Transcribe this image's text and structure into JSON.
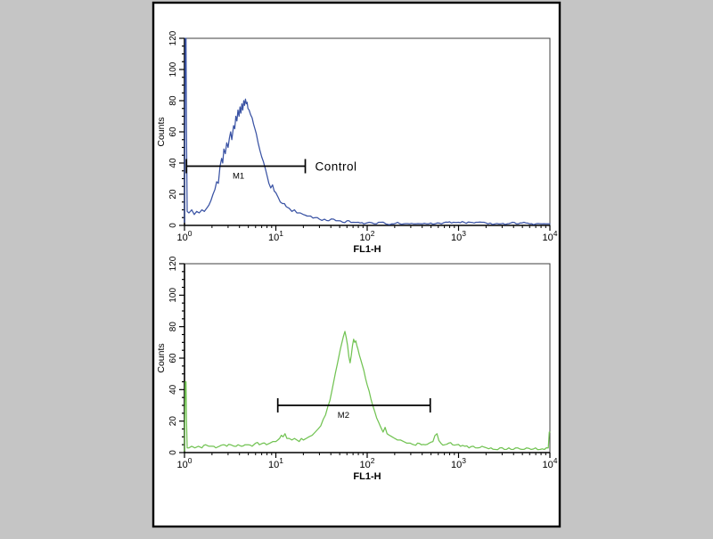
{
  "figure": {
    "outer_background": "#c5c5c5",
    "panel_background": "#ffffff",
    "figure_border_color": "#000000",
    "axis_color": "#000000",
    "frame_color": "#3f3f3f",
    "marker_color": "#000000"
  },
  "chart_data": {
    "type": "line",
    "subtype": "flow-cytometry-histogram",
    "panels": [
      {
        "name": "control-histogram",
        "line_color": "#3a53a4",
        "xlabel": "FL1-H",
        "ylabel": "Counts",
        "x_scale": "log",
        "x_tick_exponents": [
          0,
          1,
          2,
          3,
          4
        ],
        "x_tick_base": "10",
        "ylim": [
          0,
          120
        ],
        "y_major_ticks": [
          0,
          20,
          40,
          60,
          80,
          100,
          120
        ],
        "y_minor_step": 5,
        "marker": {
          "label": "M1",
          "x_from": 1.05,
          "x_to": 21,
          "y_counts": 38,
          "annotation": "Control"
        },
        "points": [
          [
            1,
            2
          ],
          [
            1.02,
            120
          ],
          [
            1.04,
            120
          ],
          [
            1.05,
            63
          ],
          [
            1.07,
            9
          ],
          [
            1.12,
            8
          ],
          [
            1.2,
            10
          ],
          [
            1.28,
            7
          ],
          [
            1.36,
            9
          ],
          [
            1.45,
            8
          ],
          [
            1.55,
            10
          ],
          [
            1.65,
            9
          ],
          [
            1.75,
            11
          ],
          [
            1.85,
            13
          ],
          [
            1.95,
            16
          ],
          [
            2.05,
            20
          ],
          [
            2.15,
            23
          ],
          [
            2.25,
            28
          ],
          [
            2.35,
            27
          ],
          [
            2.45,
            38
          ],
          [
            2.55,
            43
          ],
          [
            2.62,
            40
          ],
          [
            2.7,
            49
          ],
          [
            2.8,
            46
          ],
          [
            2.9,
            53
          ],
          [
            3,
            50
          ],
          [
            3.1,
            56
          ],
          [
            3.2,
            60
          ],
          [
            3.3,
            55
          ],
          [
            3.45,
            64
          ],
          [
            3.55,
            62
          ],
          [
            3.65,
            70
          ],
          [
            3.75,
            67
          ],
          [
            3.85,
            74
          ],
          [
            3.95,
            70
          ],
          [
            4.05,
            76
          ],
          [
            4.15,
            72
          ],
          [
            4.25,
            78
          ],
          [
            4.35,
            74
          ],
          [
            4.45,
            80
          ],
          [
            4.55,
            77
          ],
          [
            4.65,
            81
          ],
          [
            4.75,
            78
          ],
          [
            4.85,
            79
          ],
          [
            4.95,
            75
          ],
          [
            5.1,
            74
          ],
          [
            5.3,
            71
          ],
          [
            5.5,
            69
          ],
          [
            5.7,
            65
          ],
          [
            5.9,
            62
          ],
          [
            6.1,
            59
          ],
          [
            6.4,
            53
          ],
          [
            6.7,
            48
          ],
          [
            7,
            44
          ],
          [
            7.3,
            41
          ],
          [
            7.7,
            36
          ],
          [
            8,
            32
          ],
          [
            8.4,
            27
          ],
          [
            8.8,
            24
          ],
          [
            9.2,
            26
          ],
          [
            9.6,
            22
          ],
          [
            10,
            21
          ],
          [
            10.6,
            18
          ],
          [
            11.2,
            15
          ],
          [
            11.8,
            14
          ],
          [
            12.4,
            14
          ],
          [
            13,
            12
          ],
          [
            14,
            11
          ],
          [
            15,
            9
          ],
          [
            16,
            10
          ],
          [
            17,
            8
          ],
          [
            18.5,
            8
          ],
          [
            20,
            7
          ],
          [
            22,
            6
          ],
          [
            24,
            6
          ],
          [
            27,
            5
          ],
          [
            30,
            4
          ],
          [
            34,
            4
          ],
          [
            38,
            3
          ],
          [
            43,
            4
          ],
          [
            48,
            3
          ],
          [
            54,
            2
          ],
          [
            60,
            3
          ],
          [
            70,
            2
          ],
          [
            80,
            2
          ],
          [
            92,
            1
          ],
          [
            105,
            2
          ],
          [
            120,
            1
          ],
          [
            140,
            2
          ],
          [
            160,
            1
          ],
          [
            185,
            1
          ],
          [
            215,
            2
          ],
          [
            250,
            1
          ],
          [
            290,
            1
          ],
          [
            340,
            1
          ],
          [
            400,
            1
          ],
          [
            470,
            1
          ],
          [
            550,
            1
          ],
          [
            650,
            1
          ],
          [
            760,
            2
          ],
          [
            880,
            2
          ],
          [
            1000,
            2
          ],
          [
            1150,
            2
          ],
          [
            1350,
            2
          ],
          [
            1550,
            2
          ],
          [
            1800,
            2
          ],
          [
            2100,
            1
          ],
          [
            2500,
            1
          ],
          [
            2900,
            1
          ],
          [
            3400,
            1
          ],
          [
            3900,
            2
          ],
          [
            4500,
            1
          ],
          [
            5200,
            2
          ],
          [
            6000,
            1
          ],
          [
            7000,
            1
          ],
          [
            8200,
            1
          ],
          [
            9500,
            1
          ],
          [
            10000,
            1
          ]
        ]
      },
      {
        "name": "sample-histogram",
        "line_color": "#72c353",
        "xlabel": "FL1-H",
        "ylabel": "Counts",
        "x_scale": "log",
        "x_tick_exponents": [
          0,
          1,
          2,
          3,
          4
        ],
        "x_tick_base": "10",
        "ylim": [
          0,
          120
        ],
        "y_major_ticks": [
          0,
          20,
          40,
          60,
          80,
          100,
          120
        ],
        "y_minor_step": 5,
        "marker": {
          "label": "M2",
          "x_from": 10.5,
          "x_to": 490,
          "y_counts": 30,
          "annotation": ""
        },
        "points": [
          [
            1,
            1
          ],
          [
            1.02,
            45
          ],
          [
            1.04,
            45
          ],
          [
            1.05,
            22
          ],
          [
            1.07,
            3
          ],
          [
            1.12,
            3
          ],
          [
            1.2,
            4
          ],
          [
            1.3,
            3
          ],
          [
            1.42,
            4
          ],
          [
            1.55,
            3
          ],
          [
            1.7,
            5
          ],
          [
            1.85,
            4
          ],
          [
            2,
            4
          ],
          [
            2.2,
            3
          ],
          [
            2.4,
            4
          ],
          [
            2.65,
            5
          ],
          [
            2.9,
            4
          ],
          [
            3.2,
            5
          ],
          [
            3.5,
            4
          ],
          [
            3.85,
            5
          ],
          [
            4.2,
            4
          ],
          [
            4.6,
            5
          ],
          [
            5,
            5
          ],
          [
            5.5,
            4
          ],
          [
            6,
            6
          ],
          [
            6.6,
            5
          ],
          [
            7.2,
            6
          ],
          [
            7.9,
            5
          ],
          [
            8.6,
            6
          ],
          [
            9.3,
            7
          ],
          [
            10,
            7
          ],
          [
            10.5,
            8
          ],
          [
            11,
            9
          ],
          [
            11.5,
            11
          ],
          [
            12,
            10
          ],
          [
            12.6,
            12
          ],
          [
            13.2,
            9
          ],
          [
            14,
            9
          ],
          [
            15,
            8
          ],
          [
            16,
            9
          ],
          [
            17,
            8
          ],
          [
            18,
            7
          ],
          [
            19,
            9
          ],
          [
            20,
            8
          ],
          [
            21.5,
            9
          ],
          [
            23,
            10
          ],
          [
            25,
            11
          ],
          [
            27,
            13
          ],
          [
            29,
            15
          ],
          [
            31,
            17
          ],
          [
            33,
            21
          ],
          [
            35,
            24
          ],
          [
            37,
            29
          ],
          [
            39,
            33
          ],
          [
            41,
            39
          ],
          [
            43,
            45
          ],
          [
            45,
            51
          ],
          [
            47,
            56
          ],
          [
            49,
            61
          ],
          [
            51,
            66
          ],
          [
            53,
            70
          ],
          [
            55,
            74
          ],
          [
            57,
            77
          ],
          [
            59,
            73
          ],
          [
            61,
            68
          ],
          [
            63,
            61
          ],
          [
            65,
            57
          ],
          [
            67,
            62
          ],
          [
            69,
            68
          ],
          [
            71,
            72
          ],
          [
            73,
            70
          ],
          [
            75,
            71
          ],
          [
            77,
            68
          ],
          [
            79,
            66
          ],
          [
            82,
            62
          ],
          [
            85,
            59
          ],
          [
            88,
            56
          ],
          [
            92,
            52
          ],
          [
            96,
            47
          ],
          [
            100,
            43
          ],
          [
            105,
            39
          ],
          [
            110,
            34
          ],
          [
            115,
            30
          ],
          [
            121,
            26
          ],
          [
            127,
            22
          ],
          [
            134,
            19
          ],
          [
            141,
            16
          ],
          [
            149,
            13
          ],
          [
            157,
            16
          ],
          [
            165,
            12
          ],
          [
            175,
            11
          ],
          [
            187,
            10
          ],
          [
            200,
            9
          ],
          [
            215,
            8
          ],
          [
            232,
            8
          ],
          [
            250,
            7
          ],
          [
            272,
            6
          ],
          [
            296,
            6
          ],
          [
            324,
            5
          ],
          [
            356,
            6
          ],
          [
            392,
            5
          ],
          [
            432,
            5
          ],
          [
            476,
            6
          ],
          [
            525,
            7
          ],
          [
            580,
            12
          ],
          [
            640,
            6
          ],
          [
            705,
            5
          ],
          [
            780,
            6
          ],
          [
            860,
            5
          ],
          [
            950,
            5
          ],
          [
            1050,
            4
          ],
          [
            1170,
            4
          ],
          [
            1300,
            3
          ],
          [
            1450,
            4
          ],
          [
            1620,
            3
          ],
          [
            1810,
            4
          ],
          [
            2020,
            3
          ],
          [
            2260,
            3
          ],
          [
            2530,
            2
          ],
          [
            2830,
            3
          ],
          [
            3170,
            2
          ],
          [
            3550,
            3
          ],
          [
            3970,
            2
          ],
          [
            4440,
            3
          ],
          [
            4970,
            2
          ],
          [
            5560,
            3
          ],
          [
            6220,
            2
          ],
          [
            6960,
            3
          ],
          [
            7790,
            2
          ],
          [
            8710,
            2
          ],
          [
            9600,
            3
          ],
          [
            9850,
            13
          ],
          [
            10000,
            13
          ]
        ]
      }
    ]
  }
}
